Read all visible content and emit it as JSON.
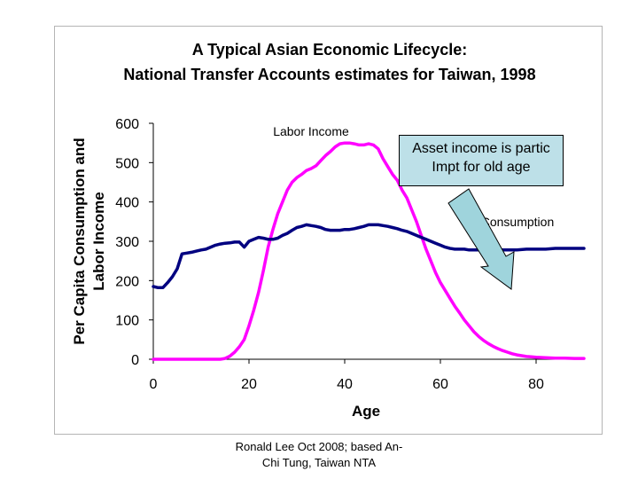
{
  "chart_data": {
    "type": "line",
    "title": [
      "A Typical Asian Economic Lifecycle:",
      "National Transfer Accounts estimates for Taiwan, 1998"
    ],
    "xlabel": "Age",
    "ylabel": [
      "Per Capita Consumption and",
      "Labor Income"
    ],
    "xlim": [
      0,
      90
    ],
    "ylim": [
      0,
      600
    ],
    "x_ticks": [
      "0",
      "20",
      "40",
      "60",
      "80"
    ],
    "y_ticks": [
      "0",
      "100",
      "200",
      "300",
      "400",
      "500",
      "600"
    ],
    "grid": false,
    "legend": "none",
    "series": [
      {
        "name": "Labor Income",
        "color": "#ff00ff",
        "x": [
          0,
          5,
          10,
          14,
          15,
          16,
          17,
          18,
          19,
          20,
          21,
          22,
          23,
          24,
          25,
          26,
          27,
          28,
          29,
          30,
          31,
          32,
          33,
          34,
          35,
          36,
          37,
          38,
          39,
          40,
          41,
          42,
          43,
          44,
          45,
          46,
          47,
          48,
          49,
          50,
          51,
          52,
          53,
          54,
          55,
          56,
          57,
          58,
          59,
          60,
          61,
          62,
          63,
          64,
          65,
          66,
          67,
          68,
          69,
          70,
          71,
          72,
          73,
          74,
          75,
          76,
          77,
          78,
          79,
          80,
          82,
          84,
          86,
          88,
          90
        ],
        "values": [
          0,
          0,
          0,
          0,
          2,
          8,
          18,
          32,
          50,
          85,
          125,
          170,
          225,
          285,
          330,
          370,
          400,
          430,
          450,
          462,
          470,
          480,
          485,
          492,
          505,
          518,
          528,
          540,
          548,
          550,
          550,
          548,
          545,
          545,
          548,
          545,
          535,
          510,
          490,
          470,
          455,
          430,
          410,
          380,
          350,
          315,
          280,
          250,
          220,
          195,
          175,
          155,
          135,
          118,
          100,
          85,
          70,
          58,
          48,
          40,
          33,
          27,
          22,
          18,
          14,
          11,
          9,
          7,
          6,
          5,
          4,
          3,
          3,
          2,
          2
        ]
      },
      {
        "name": "Consumption",
        "color": "#000080",
        "x": [
          0,
          1,
          2,
          3,
          4,
          5,
          6,
          7,
          8,
          9,
          10,
          11,
          12,
          13,
          14,
          15,
          16,
          17,
          18,
          19,
          20,
          21,
          22,
          23,
          24,
          25,
          26,
          27,
          28,
          29,
          30,
          31,
          32,
          33,
          34,
          35,
          36,
          37,
          38,
          39,
          40,
          41,
          42,
          43,
          44,
          45,
          46,
          47,
          48,
          49,
          50,
          51,
          52,
          53,
          54,
          55,
          56,
          57,
          58,
          59,
          60,
          61,
          62,
          63,
          64,
          65,
          66,
          67,
          68,
          69,
          70,
          72,
          74,
          76,
          78,
          80,
          82,
          84,
          86,
          88,
          90
        ],
        "values": [
          185,
          182,
          182,
          195,
          210,
          230,
          268,
          270,
          272,
          275,
          278,
          280,
          285,
          290,
          293,
          295,
          296,
          298,
          298,
          285,
          300,
          305,
          310,
          308,
          305,
          305,
          308,
          315,
          320,
          328,
          335,
          338,
          342,
          340,
          338,
          335,
          330,
          328,
          328,
          328,
          330,
          330,
          332,
          335,
          338,
          342,
          342,
          342,
          340,
          338,
          335,
          332,
          328,
          325,
          320,
          315,
          310,
          305,
          300,
          295,
          290,
          285,
          282,
          280,
          280,
          280,
          278,
          278,
          278,
          278,
          278,
          278,
          278,
          278,
          280,
          280,
          280,
          282,
          282,
          282,
          282
        ]
      }
    ],
    "annotations": {
      "labor_income_label": "Labor Income",
      "consumption_label": "Consumption",
      "callout_lines": [
        "Asset income is partic",
        "Impt for old age"
      ]
    }
  },
  "credit": [
    "Ronald Lee Oct 2008; based An-",
    "Chi Tung, Taiwan NTA"
  ],
  "colors": {
    "callout_fill": "#bde0e8",
    "arrow_fill": "#9fd4dc",
    "frame_border": "#b5b5b5"
  }
}
